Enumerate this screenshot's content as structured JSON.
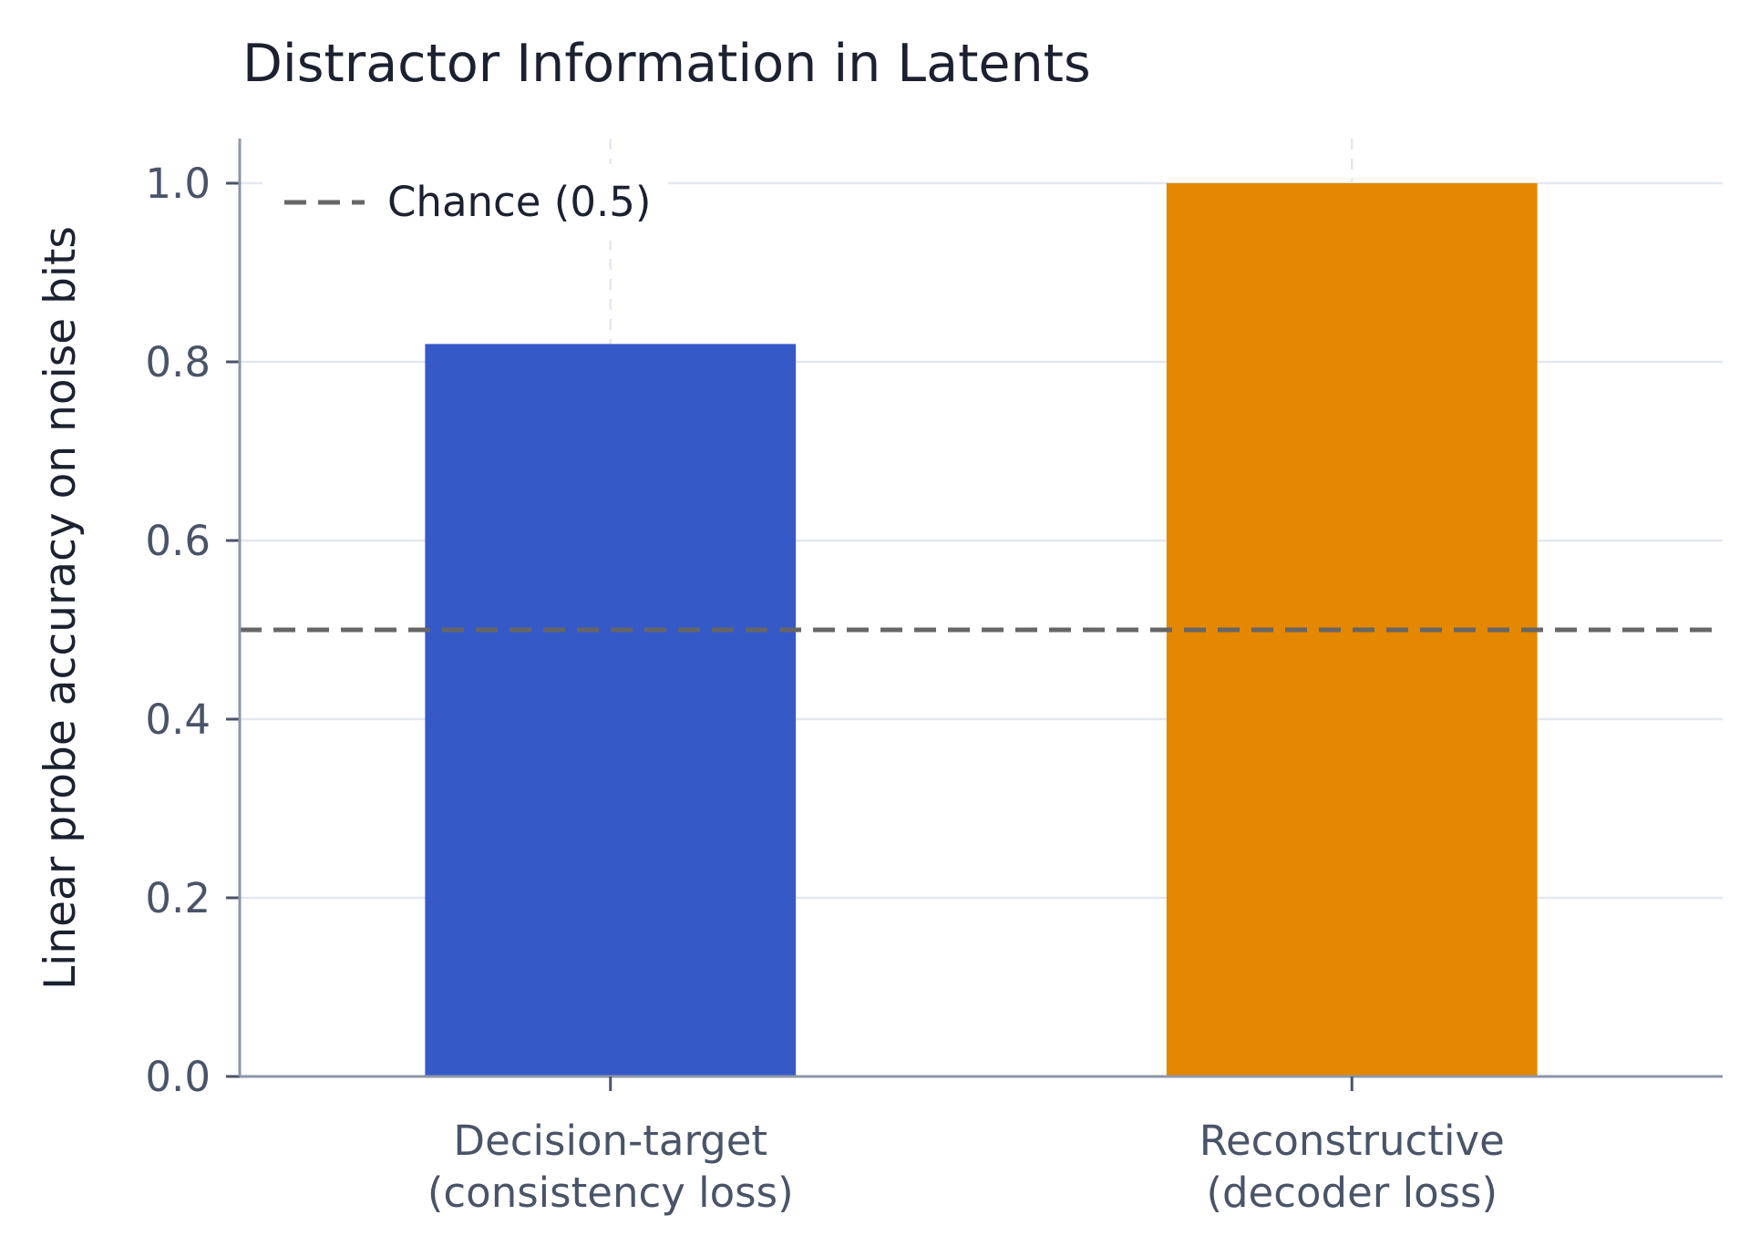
{
  "chart_data": {
    "type": "bar",
    "title": "Distractor Information in Latents",
    "ylabel": "Linear probe accuracy on noise bits",
    "xlabel": "",
    "categories": [
      [
        "Decision-target",
        "(consistency loss)"
      ],
      [
        "Reconstructive",
        "(decoder loss)"
      ]
    ],
    "values": [
      0.82,
      1.0
    ],
    "colors": [
      "#3659c8",
      "#e38800"
    ],
    "ylim": [
      0,
      1.05
    ],
    "yticks": [
      "0.0",
      "0.2",
      "0.4",
      "0.6",
      "0.8",
      "1.0"
    ],
    "reference_line": {
      "label": "Chance (0.5)",
      "value": 0.5,
      "color": "#666666",
      "style": "dashed"
    },
    "legend": {
      "position": "top-left",
      "entries": [
        "Chance (0.5)"
      ]
    },
    "grid": true
  }
}
